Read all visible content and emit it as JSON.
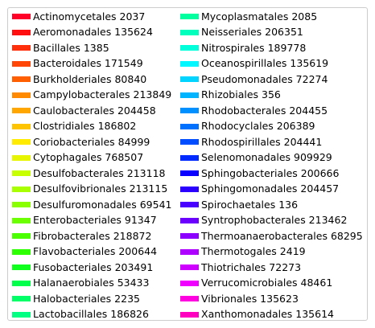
{
  "chart_data": {
    "type": "bar",
    "legend_columns": 2,
    "entries": [
      {
        "label": "Actinomycetales 2037",
        "color": "#ff0029"
      },
      {
        "label": "Aeromonadales 135624",
        "color": "#ff0f0f"
      },
      {
        "label": "Bacillales 1385",
        "color": "#ff2e0b"
      },
      {
        "label": "Bacteroidales 171549",
        "color": "#ff4606"
      },
      {
        "label": "Burkholderiales 80840",
        "color": "#ff5f00"
      },
      {
        "label": "Campylobacterales 213849",
        "color": "#ff8a00"
      },
      {
        "label": "Caulobacterales 204458",
        "color": "#ffa700"
      },
      {
        "label": "Clostridiales 186802",
        "color": "#ffc400"
      },
      {
        "label": "Coriobacteriales 84999",
        "color": "#ffeb00"
      },
      {
        "label": "Cytophagales 768507",
        "color": "#e8f500"
      },
      {
        "label": "Desulfobacterales 213118",
        "color": "#c8ff00"
      },
      {
        "label": "Desulfovibrionales 213115",
        "color": "#a9ff00"
      },
      {
        "label": "Desulfuromonadales 69541",
        "color": "#8aff00"
      },
      {
        "label": "Enterobacteriales 91347",
        "color": "#6bff00"
      },
      {
        "label": "Fibrobacterales 218872",
        "color": "#4cff00"
      },
      {
        "label": "Flavobacteriales 200644",
        "color": "#2dff00"
      },
      {
        "label": "Fusobacteriales 203491",
        "color": "#10ff1f"
      },
      {
        "label": "Halanaerobiales 53433",
        "color": "#00ff4a"
      },
      {
        "label": "Halobacteriales 2235",
        "color": "#00ff66"
      },
      {
        "label": "Lactobacillales 186826",
        "color": "#00ff83"
      },
      {
        "label": "Mycoplasmatales 2085",
        "color": "#00ff9e"
      },
      {
        "label": "Neisseriales 206351",
        "color": "#00ffbd"
      },
      {
        "label": "Nitrospirales 189778",
        "color": "#00ffdb"
      },
      {
        "label": "Oceanospirillales 135619",
        "color": "#00f7ff"
      },
      {
        "label": "Pseudomonadales 72274",
        "color": "#00d4ff"
      },
      {
        "label": "Rhizobiales 356",
        "color": "#00b4ff"
      },
      {
        "label": "Rhodobacterales 204455",
        "color": "#0090ff"
      },
      {
        "label": "Rhodocyclales 206389",
        "color": "#0070ff"
      },
      {
        "label": "Rhodospirillales 204441",
        "color": "#004dff"
      },
      {
        "label": "Selenomonadales 909929",
        "color": "#002aff"
      },
      {
        "label": "Sphingobacteriales 200666",
        "color": "#0a00ff"
      },
      {
        "label": "Sphingomonadales 204457",
        "color": "#2b00ff"
      },
      {
        "label": "Spirochaetales 136",
        "color": "#4a00ff"
      },
      {
        "label": "Syntrophobacterales 213462",
        "color": "#6b00ff"
      },
      {
        "label": "Thermoanaerobacterales 68295",
        "color": "#8c00ff"
      },
      {
        "label": "Thermotogales 2419",
        "color": "#ae00ff"
      },
      {
        "label": "Thiotrichales 72273",
        "color": "#cf00ff"
      },
      {
        "label": "Verrucomicrobiales 48461",
        "color": "#f000ff"
      },
      {
        "label": "Vibrionales 135623",
        "color": "#ff00e0"
      },
      {
        "label": "Xanthomonadales 135614",
        "color": "#ff00c0"
      }
    ]
  }
}
